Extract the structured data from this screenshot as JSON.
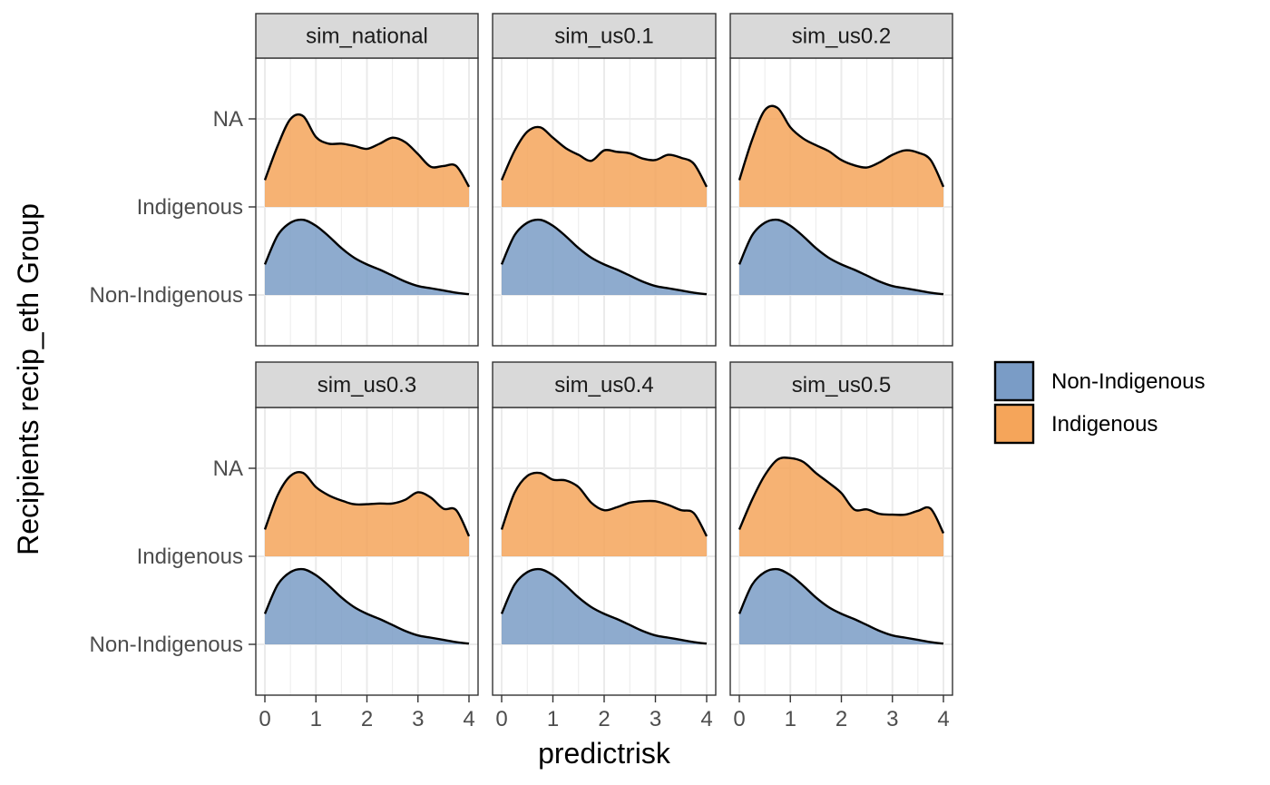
{
  "chart_data": {
    "type": "area",
    "subtype": "faceted ridgeline density",
    "xlabel": "predictrisk",
    "ylabel": "Recipients recip_eth Group",
    "xlim": [
      0,
      4
    ],
    "x_ticks": [
      0,
      1,
      2,
      3,
      4
    ],
    "y_ticks": [
      "NA",
      "Indigenous",
      "Non-Indigenous"
    ],
    "grid": true,
    "legend": {
      "position": "right",
      "entries": [
        {
          "label": "Non-Indigenous",
          "color": "#7a9cc6"
        },
        {
          "label": "Indigenous",
          "color": "#f5a55a"
        }
      ]
    },
    "colors": {
      "non_indigenous_fill": "#7a9cc6",
      "indigenous_fill": "#f5a55a",
      "overlap": "#8b8787",
      "strip_bg": "#d9d9d9",
      "grid": "#ebebeb"
    },
    "x": [
      0,
      0.25,
      0.5,
      0.75,
      1.0,
      1.25,
      1.5,
      1.75,
      2.0,
      2.25,
      2.5,
      2.75,
      3.0,
      3.25,
      3.5,
      3.75,
      4.0
    ],
    "panels": [
      {
        "name": "sim_national",
        "series": [
          {
            "group": "Non-Indigenous",
            "density": [
              0.41,
              0.8,
              0.97,
              1.01,
              0.93,
              0.79,
              0.63,
              0.5,
              0.41,
              0.34,
              0.26,
              0.18,
              0.12,
              0.09,
              0.06,
              0.03,
              0.01
            ]
          },
          {
            "group": "Indigenous",
            "density": [
              0.36,
              0.82,
              1.18,
              1.22,
              0.94,
              0.85,
              0.85,
              0.82,
              0.78,
              0.85,
              0.93,
              0.87,
              0.71,
              0.54,
              0.55,
              0.55,
              0.27
            ]
          }
        ]
      },
      {
        "name": "sim_us0.1",
        "series": [
          {
            "group": "Non-Indigenous",
            "density": [
              0.41,
              0.8,
              0.97,
              1.01,
              0.93,
              0.79,
              0.63,
              0.5,
              0.41,
              0.34,
              0.26,
              0.18,
              0.12,
              0.09,
              0.06,
              0.03,
              0.01
            ]
          },
          {
            "group": "Indigenous",
            "density": [
              0.36,
              0.75,
              1.01,
              1.07,
              0.93,
              0.79,
              0.7,
              0.62,
              0.76,
              0.74,
              0.72,
              0.65,
              0.63,
              0.7,
              0.66,
              0.58,
              0.27
            ]
          }
        ]
      },
      {
        "name": "sim_us0.2",
        "series": [
          {
            "group": "Non-Indigenous",
            "density": [
              0.41,
              0.8,
              0.97,
              1.01,
              0.93,
              0.79,
              0.63,
              0.5,
              0.41,
              0.34,
              0.26,
              0.18,
              0.12,
              0.09,
              0.06,
              0.03,
              0.01
            ]
          },
          {
            "group": "Indigenous",
            "density": [
              0.36,
              0.9,
              1.3,
              1.33,
              1.07,
              0.92,
              0.83,
              0.75,
              0.63,
              0.56,
              0.53,
              0.6,
              0.7,
              0.76,
              0.73,
              0.63,
              0.27
            ]
          }
        ]
      },
      {
        "name": "sim_us0.3",
        "series": [
          {
            "group": "Non-Indigenous",
            "density": [
              0.41,
              0.8,
              0.97,
              1.01,
              0.93,
              0.79,
              0.63,
              0.5,
              0.41,
              0.34,
              0.26,
              0.18,
              0.12,
              0.09,
              0.06,
              0.03,
              0.01
            ]
          },
          {
            "group": "Indigenous",
            "density": [
              0.36,
              0.82,
              1.08,
              1.12,
              0.93,
              0.82,
              0.75,
              0.7,
              0.7,
              0.71,
              0.71,
              0.76,
              0.86,
              0.79,
              0.64,
              0.62,
              0.27
            ]
          }
        ]
      },
      {
        "name": "sim_us0.4",
        "series": [
          {
            "group": "Non-Indigenous",
            "density": [
              0.41,
              0.8,
              0.97,
              1.01,
              0.93,
              0.79,
              0.63,
              0.5,
              0.41,
              0.34,
              0.26,
              0.18,
              0.12,
              0.09,
              0.06,
              0.03,
              0.01
            ]
          },
          {
            "group": "Indigenous",
            "density": [
              0.36,
              0.85,
              1.08,
              1.12,
              1.03,
              1.02,
              0.93,
              0.72,
              0.62,
              0.66,
              0.72,
              0.74,
              0.74,
              0.69,
              0.62,
              0.58,
              0.27
            ]
          }
        ]
      },
      {
        "name": "sim_us0.5",
        "series": [
          {
            "group": "Non-Indigenous",
            "density": [
              0.41,
              0.8,
              0.97,
              1.01,
              0.93,
              0.79,
              0.63,
              0.5,
              0.41,
              0.34,
              0.26,
              0.18,
              0.12,
              0.09,
              0.06,
              0.03,
              0.01
            ]
          },
          {
            "group": "Indigenous",
            "density": [
              0.36,
              0.76,
              1.09,
              1.3,
              1.32,
              1.27,
              1.12,
              0.99,
              0.85,
              0.63,
              0.63,
              0.57,
              0.56,
              0.56,
              0.61,
              0.64,
              0.31
            ]
          }
        ]
      }
    ]
  }
}
